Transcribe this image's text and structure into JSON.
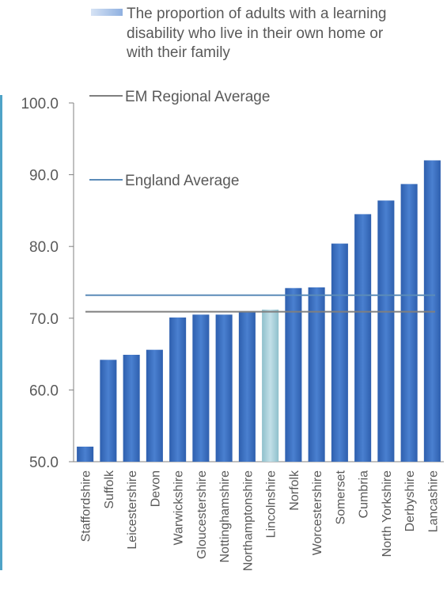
{
  "chart_data": {
    "type": "bar",
    "title": "",
    "xlabel": "",
    "ylabel": "",
    "ylim": [
      50,
      100
    ],
    "yticks": [
      "50.0",
      "60.0",
      "70.0",
      "80.0",
      "90.0",
      "100.0"
    ],
    "categories": [
      "Staffordshire",
      "Suffolk",
      "Leicestershire",
      "Devon",
      "Warwickshire",
      "Gloucestershire",
      "Nottinghamshire",
      "Northamptonshire",
      "Lincolnshire",
      "Norfolk",
      "Worcestershire",
      "Somerset",
      "Cumbria",
      "North Yorkshire",
      "Derbyshire",
      "Lancashire"
    ],
    "series": [
      {
        "name": "The proportion of adults with a learning disability who live in their own home or with their family",
        "values": [
          52.1,
          64.2,
          64.9,
          65.6,
          70.1,
          70.5,
          70.5,
          70.9,
          71.2,
          74.2,
          74.3,
          80.4,
          84.5,
          86.4,
          88.7,
          92.0
        ],
        "color": "#3A6FC4",
        "highlight_category": "Lincolnshire",
        "highlight_color": "#A8CFD9"
      }
    ],
    "reference_lines": [
      {
        "name": "EM Regional Average",
        "value": 70.9,
        "color": "#7F7F7F"
      },
      {
        "name": "England Average",
        "value": 73.2,
        "color": "#5B8BB8"
      }
    ],
    "legend_lines": [
      "The proportion of adults with a learning",
      "disability who live in their own home or",
      "with their family"
    ],
    "grid": false,
    "legend_position": "top"
  }
}
